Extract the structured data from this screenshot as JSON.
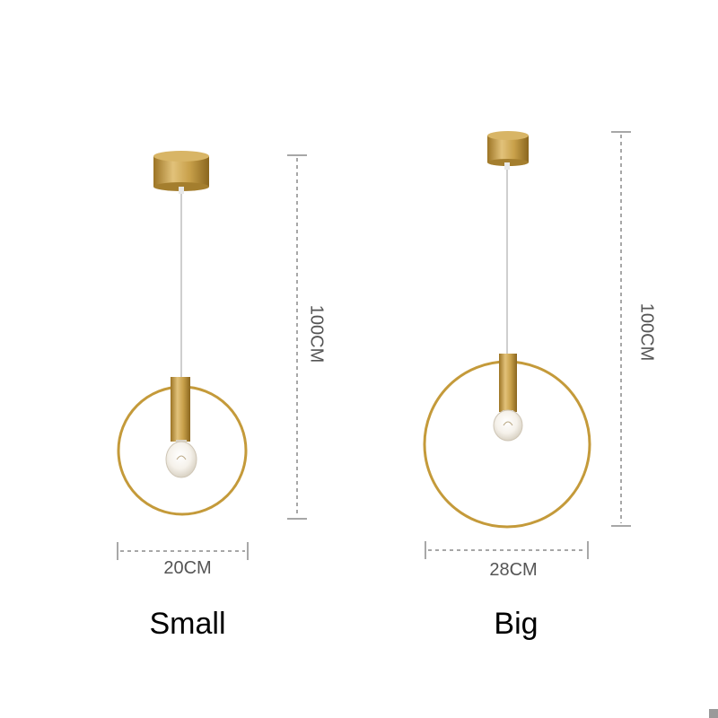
{
  "products": [
    {
      "name": "Small",
      "width_label": "20CM",
      "height_label": "100CM"
    },
    {
      "name": "Big",
      "width_label": "28CM",
      "height_label": "100CM"
    }
  ],
  "colors": {
    "brass": "#c49a3a",
    "dimension_lines": "#8a8a8a",
    "label_text": "#555555",
    "title_text": "#000000"
  }
}
